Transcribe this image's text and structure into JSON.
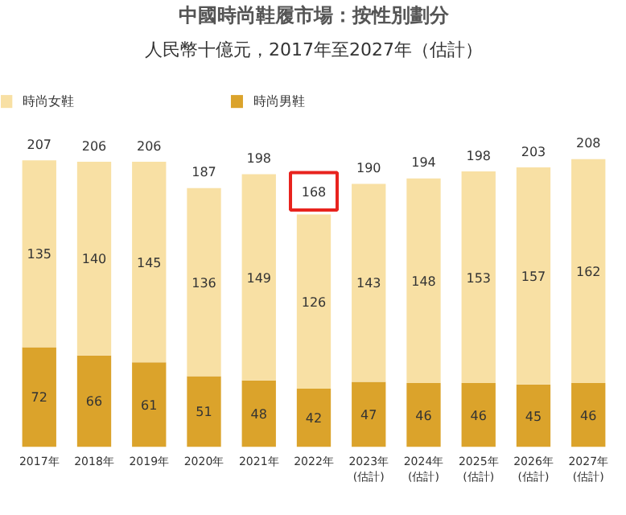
{
  "chart_data": {
    "type": "bar",
    "title": "中國時尚鞋履市場：按性別劃分",
    "subtitle": "人民幣十億元，2017年至2027年（估計）",
    "categories": [
      "2017年",
      "2018年",
      "2019年",
      "2020年",
      "2021年",
      "2022年",
      "2023年\n(估計)",
      "2024年\n(估計)",
      "2025年\n(估計)",
      "2026年\n(估計)",
      "2027年\n(估計)"
    ],
    "stacked": true,
    "data_labels": true,
    "legend": "top left",
    "series": [
      {
        "name": "時尚男鞋",
        "color": "#dba32b",
        "values": [
          72,
          66,
          61,
          51,
          48,
          42,
          47,
          46,
          46,
          45,
          46
        ]
      },
      {
        "name": "時尚女鞋",
        "color": "#f8e0a4",
        "values": [
          135,
          140,
          145,
          136,
          149,
          126,
          143,
          148,
          153,
          157,
          162
        ]
      }
    ],
    "totals": [
      "207",
      "206",
      "206",
      "187",
      "198",
      null,
      "190",
      "194",
      "198",
      "203",
      "208"
    ],
    "annotations": [
      {
        "text": "168",
        "x": "2022年",
        "y": 168
      }
    ]
  }
}
